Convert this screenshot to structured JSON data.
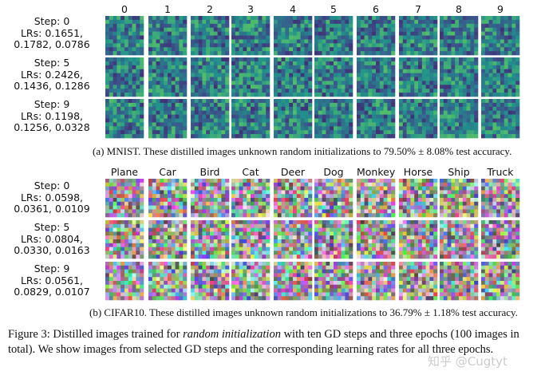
{
  "mnist": {
    "columns": [
      "0",
      "1",
      "2",
      "3",
      "4",
      "5",
      "6",
      "7",
      "8",
      "9"
    ],
    "rows": [
      {
        "step": "Step: 0",
        "lrs_line1": "LRs: 0.1651,",
        "lrs_line2": "0.1782, 0.0786"
      },
      {
        "step": "Step: 5",
        "lrs_line1": "LRs: 0.2426,",
        "lrs_line2": "0.1436, 0.1286"
      },
      {
        "step": "Step: 9",
        "lrs_line1": "LRs: 0.1198,",
        "lrs_line2": "0.1256, 0.0328"
      }
    ],
    "caption_prefix": "(a) MNIST. These distilled images unknown random initializations to ",
    "caption_value": "79.50% ± 8.08%",
    "caption_suffix": " test accuracy."
  },
  "cifar": {
    "columns": [
      "Plane",
      "Car",
      "Bird",
      "Cat",
      "Deer",
      "Dog",
      "Monkey",
      "Horse",
      "Ship",
      "Truck"
    ],
    "rows": [
      {
        "step": "Step: 0",
        "lrs_line1": "LRs: 0.0598,",
        "lrs_line2": "0.0361, 0.0109"
      },
      {
        "step": "Step: 5",
        "lrs_line1": "LRs: 0.0804,",
        "lrs_line2": "0.0330, 0.0163"
      },
      {
        "step": "Step: 9",
        "lrs_line1": "LRs: 0.0561,",
        "lrs_line2": "0.0829, 0.0107"
      }
    ],
    "caption_prefix": "(b) CIFAR10. These distilled images unknown random initializations to ",
    "caption_value": "36.79% ± 1.18%",
    "caption_suffix": " test accuracy."
  },
  "figure_caption": {
    "label": "Figure 3:",
    "part1": " Distilled images trained for ",
    "emph": "random initialization",
    "part2": " with ten GD steps and three epochs (100 images in total). We show images from selected GD steps and the corresponding learning rates for all three epochs."
  },
  "watermark": "知乎 @Cugtyt"
}
